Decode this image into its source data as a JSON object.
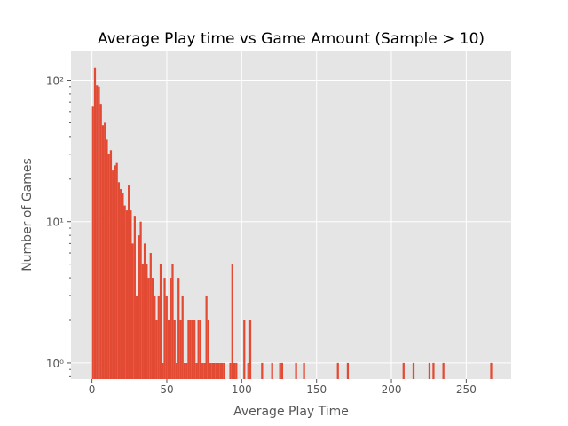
{
  "chart_data": {
    "type": "bar",
    "title": "Average Play time vs Game Amount (Sample > 10)",
    "xlabel": "Average Play Time",
    "ylabel": "Number of Games",
    "yscale": "log",
    "xlim": [
      -14,
      280
    ],
    "ylim": [
      0.77,
      160
    ],
    "grid": true,
    "style": "ggplot",
    "bar_color": "#E24A33",
    "background_color": "#E5E5E5",
    "grid_color": "#FFFFFF",
    "bin_width": 1.33,
    "x_ticks": [
      0,
      50,
      100,
      150,
      200,
      250
    ],
    "x_tick_labels": [
      "0",
      "50",
      "100",
      "150",
      "200",
      "250"
    ],
    "y_ticks": [
      1,
      10,
      100
    ],
    "y_tick_labels": [
      "10⁰",
      "10¹",
      "10²"
    ],
    "x": [
      0.0,
      1.33,
      2.66,
      3.99,
      5.32,
      6.65,
      7.98,
      9.31,
      10.64,
      11.97,
      13.3,
      14.63,
      15.96,
      17.29,
      18.62,
      19.95,
      21.28,
      22.61,
      23.94,
      25.27,
      26.6,
      27.93,
      29.26,
      30.59,
      31.92,
      33.25,
      34.58,
      35.91,
      37.24,
      38.57,
      39.9,
      41.23,
      42.56,
      43.89,
      45.22,
      46.55,
      47.88,
      49.21,
      50.54,
      51.87,
      53.2,
      54.53,
      55.86,
      57.19,
      58.52,
      59.85,
      61.18,
      62.51,
      63.84,
      65.17,
      66.5,
      67.83,
      69.16,
      70.49,
      71.82,
      73.15,
      74.48,
      75.81,
      77.14,
      78.47,
      79.8,
      81.13,
      82.46,
      83.79,
      85.12,
      86.45,
      87.78,
      91.77,
      93.1,
      94.43,
      95.76,
      101.08,
      103.74,
      105.07,
      112.98,
      119.7,
      125.02,
      126.35,
      135.66,
      140.98,
      163.59,
      170.24,
      207.48,
      214.13,
      224.77,
      227.43,
      234.08,
      266.0
    ],
    "values": [
      65,
      122,
      92,
      90,
      68,
      48,
      50,
      38,
      30,
      32,
      23,
      25,
      26,
      19,
      17,
      16,
      13,
      12,
      18,
      12,
      7,
      11,
      3,
      8,
      10,
      5,
      7,
      5,
      4,
      6,
      4,
      3,
      2,
      3,
      5,
      1,
      4,
      3,
      2,
      4,
      5,
      2,
      1,
      4,
      2,
      3,
      1,
      1,
      2,
      2,
      2,
      2,
      1,
      2,
      2,
      1,
      1,
      3,
      2,
      1,
      1,
      1,
      1,
      1,
      1,
      1,
      1,
      1,
      5,
      1,
      1,
      2,
      1,
      2,
      1,
      1,
      1,
      1,
      1,
      1,
      1,
      1,
      1,
      1,
      1,
      1,
      1,
      1
    ]
  }
}
